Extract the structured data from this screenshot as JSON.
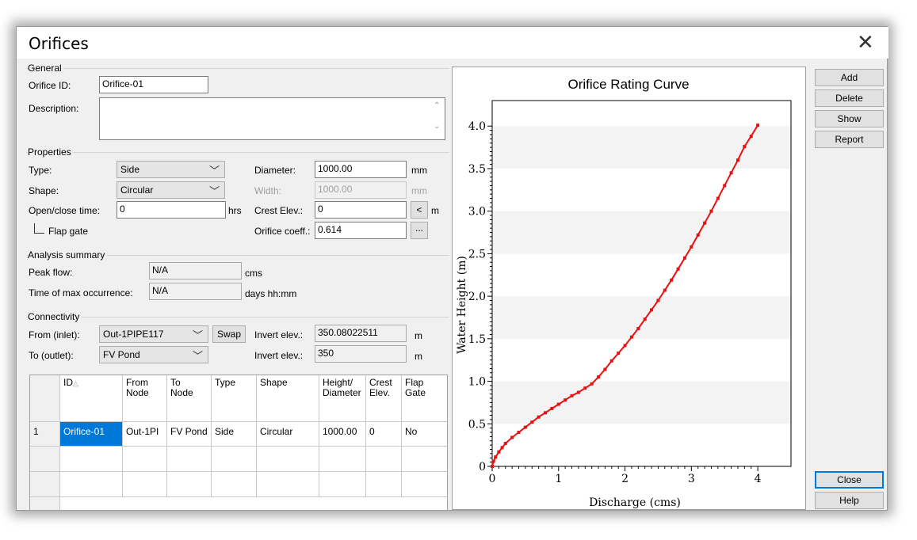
{
  "window": {
    "title": "Orifices"
  },
  "general": {
    "group_label": "General",
    "orifice_id_label": "Orifice ID:",
    "orifice_id_value": "Orifice-01",
    "description_label": "Description:",
    "description_value": ""
  },
  "properties": {
    "group_label": "Properties",
    "type_label": "Type:",
    "type_value": "Side",
    "shape_label": "Shape:",
    "shape_value": "Circular",
    "open_close_label": "Open/close time:",
    "open_close_value": "0",
    "open_close_unit": "hrs",
    "flap_gate_label": "Flap gate",
    "diameter_label": "Diameter:",
    "diameter_value": "1000.00",
    "diameter_unit": "mm",
    "width_label": "Width:",
    "width_value": "1000.00",
    "width_unit": "mm",
    "crest_label": "Crest Elev.:",
    "crest_value": "0",
    "crest_button": "<",
    "crest_unit": "m",
    "coeff_label": "Orifice coeff.:",
    "coeff_value": "0.614",
    "coeff_button": "..."
  },
  "analysis": {
    "group_label": "Analysis summary",
    "peak_label": "Peak flow:",
    "peak_value": "N/A",
    "peak_unit": "cms",
    "time_label": "Time of max occurrence:",
    "time_value": "N/A",
    "time_unit": "days hh:mm"
  },
  "connectivity": {
    "group_label": "Connectivity",
    "from_label": "From (inlet):",
    "from_value": "Out-1PIPE117",
    "to_label": "To (outlet):",
    "to_value": "FV Pond",
    "swap_button": "Swap",
    "invert_label_1": "Invert elev.:",
    "invert_value_1": "350.08022511",
    "invert_unit_1": "m",
    "invert_label_2": "Invert elev.:",
    "invert_value_2": "350",
    "invert_unit_2": "m"
  },
  "table": {
    "headers": [
      "",
      "ID",
      "From\nNode",
      "To\nNode",
      "Type",
      "Shape",
      "Height/\nDiameter",
      "Crest\nElev.",
      "Flap\nGate"
    ],
    "sort_indicator": "△",
    "rows": [
      [
        "1",
        "Orifice-01",
        "Out-1PI",
        "FV Pond",
        "Side",
        "Circular",
        "1000.00",
        "0",
        "No"
      ]
    ]
  },
  "buttons": {
    "add": "Add",
    "delete": "Delete",
    "show": "Show",
    "report": "Report",
    "close": "Close",
    "help": "Help"
  },
  "chart_data": {
    "type": "line",
    "title": "Orifice Rating Curve",
    "xlabel": "Discharge (cms)",
    "ylabel": "Water Height (m)",
    "xlim": [
      0,
      4.5
    ],
    "ylim": [
      0,
      4.3
    ],
    "xticks": [
      0,
      1,
      2,
      3,
      4
    ],
    "yticks": [
      0,
      0.5,
      1.0,
      1.5,
      2.0,
      2.5,
      3.0,
      3.5,
      4.0
    ],
    "ytick_labels": [
      "0",
      "0.5",
      "1.0",
      "1.5",
      "2.0",
      "2.5",
      "3.0",
      "3.5",
      "4.0"
    ],
    "grid": "horizontal bands",
    "series_color": "#e81010",
    "x": [
      0,
      0.02,
      0.05,
      0.1,
      0.15,
      0.2,
      0.3,
      0.4,
      0.5,
      0.6,
      0.7,
      0.8,
      0.9,
      1.0,
      1.1,
      1.2,
      1.3,
      1.4,
      1.5,
      1.6,
      1.7,
      1.8,
      1.9,
      2.0,
      2.1,
      2.2,
      2.3,
      2.4,
      2.5,
      2.6,
      2.7,
      2.8,
      2.9,
      3.0,
      3.1,
      3.2,
      3.3,
      3.4,
      3.5,
      3.6,
      3.7,
      3.8,
      3.9,
      4.0
    ],
    "y": [
      0,
      0.06,
      0.11,
      0.17,
      0.22,
      0.27,
      0.34,
      0.4,
      0.46,
      0.52,
      0.58,
      0.63,
      0.68,
      0.73,
      0.78,
      0.83,
      0.87,
      0.92,
      0.97,
      1.05,
      1.14,
      1.24,
      1.33,
      1.42,
      1.52,
      1.62,
      1.73,
      1.84,
      1.95,
      2.07,
      2.19,
      2.32,
      2.45,
      2.58,
      2.72,
      2.86,
      3.0,
      3.15,
      3.3,
      3.45,
      3.6,
      3.76,
      3.88,
      4.01
    ]
  }
}
